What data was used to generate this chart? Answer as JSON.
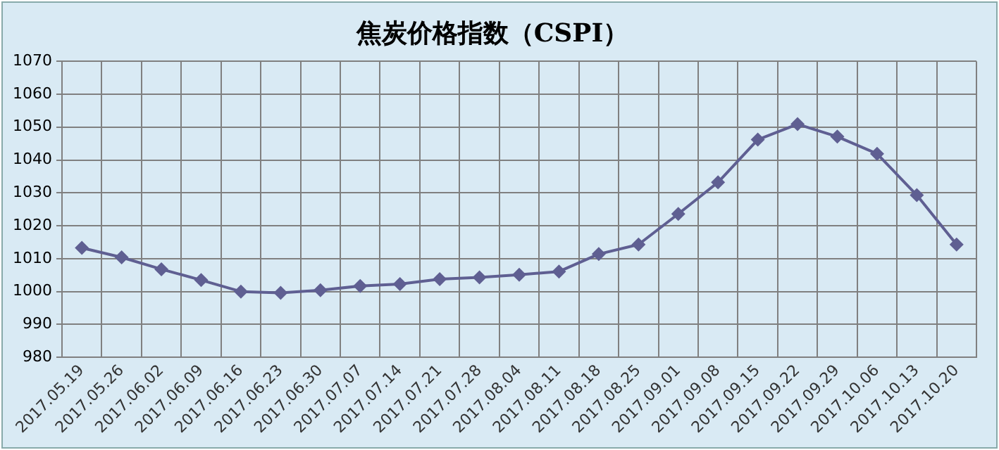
{
  "chart_data": {
    "type": "line",
    "title": "焦炭价格指数（CSPI）",
    "categories": [
      "2017.05.19",
      "2017.05.26",
      "2017.06.02",
      "2017.06.09",
      "2017.06.16",
      "2017.06.23",
      "2017.06.30",
      "2017.07.07",
      "2017.07.14",
      "2017.07.21",
      "2017.07.28",
      "2017.08.04",
      "2017.08.11",
      "2017.08.18",
      "2017.08.25",
      "2017.09.01",
      "2017.09.08",
      "2017.09.15",
      "2017.09.22",
      "2017.09.29",
      "2017.10.06",
      "2017.10.13",
      "2017.10.20"
    ],
    "series": [
      {
        "color": "#5f5f92",
        "values": [
          1013.3,
          1010.4,
          1006.8,
          1003.5,
          1000,
          999.6,
          1000.4,
          1001.7,
          1002.3,
          1003.8,
          1004.3,
          1005.1,
          1006.1,
          1011.4,
          1014.3,
          1023.6,
          1033.2,
          1046.2,
          1050.9,
          1047.1,
          1041.9,
          1029.3,
          1014.3
        ]
      }
    ],
    "ylim": [
      980,
      1070
    ],
    "yticks": [
      980,
      990,
      1000,
      1010,
      1020,
      1030,
      1040,
      1050,
      1060,
      1070
    ],
    "grid": true,
    "legend": false,
    "marker": "diamond",
    "line_style": "solid"
  }
}
